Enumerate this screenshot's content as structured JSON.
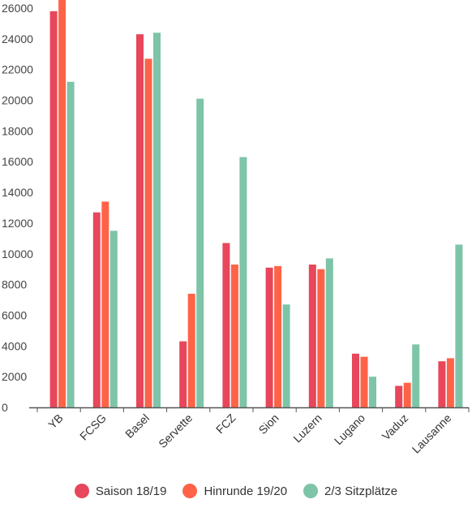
{
  "chart_data": {
    "type": "bar",
    "title": "",
    "xlabel": "",
    "ylabel": "",
    "ylim": [
      0,
      26000
    ],
    "yticks": [
      0,
      2000,
      4000,
      6000,
      8000,
      10000,
      12000,
      14000,
      16000,
      18000,
      20000,
      22000,
      24000,
      26000
    ],
    "grid": false,
    "legend_position": "bottom",
    "categories": [
      "YB",
      "FCSG",
      "Basel",
      "Servette",
      "FCZ",
      "Sion",
      "Luzern",
      "Lugano",
      "Vaduz",
      "Lausanne"
    ],
    "series": [
      {
        "name": "Saison 18/19",
        "color": "#e8465a",
        "values": [
          25800,
          12700,
          24300,
          4300,
          10700,
          9100,
          9300,
          3500,
          1400,
          3000
        ]
      },
      {
        "name": "Hinrunde 19/20",
        "color": "#ff6347",
        "values": [
          26600,
          13400,
          22700,
          7400,
          9300,
          9200,
          9000,
          3300,
          1600,
          3200
        ]
      },
      {
        "name": "2/3 Sitzplätze",
        "color": "#7ec4a8",
        "values": [
          21200,
          11500,
          24400,
          20100,
          16300,
          6700,
          9700,
          2000,
          4100,
          10600
        ]
      }
    ]
  }
}
